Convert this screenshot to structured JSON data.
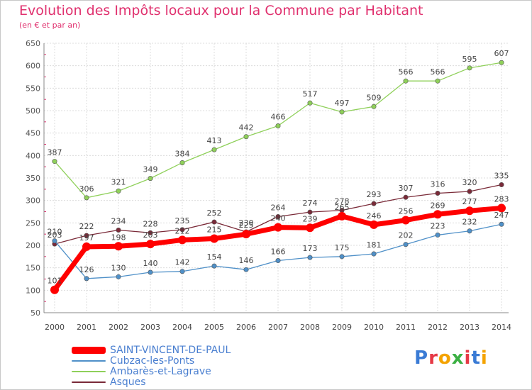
{
  "title": "Evolution des Impôts locaux pour la Commune par Habitant",
  "subtitle": "(en € et par an)",
  "brand": {
    "text": "Proxiti",
    "colors": [
      "#3a7bd5",
      "#e63946",
      "#f4a300",
      "#3cb043",
      "#e63946",
      "#3a7bd5",
      "#f4a300"
    ]
  },
  "chart_data": {
    "type": "line",
    "x": [
      "2000",
      "2001",
      "2002",
      "2003",
      "2004",
      "2005",
      "2006",
      "2007",
      "2008",
      "2009",
      "2010",
      "2011",
      "2012",
      "2013",
      "2014"
    ],
    "yticks": [
      50,
      100,
      150,
      200,
      250,
      300,
      350,
      400,
      450,
      500,
      550,
      600,
      650
    ],
    "ylim": [
      50,
      650
    ],
    "grid": true,
    "legend_position": "bottom-left",
    "series": [
      {
        "name": "SAINT-VINCENT-DE-PAUL",
        "color": "#ff0000",
        "values": [
          101,
          197,
          198,
          203,
          212,
          215,
          225,
          240,
          239,
          265,
          246,
          256,
          269,
          277,
          283
        ]
      },
      {
        "name": "Cubzac-les-Ponts",
        "color": "#4f90c8",
        "values": [
          210,
          126,
          130,
          140,
          142,
          154,
          146,
          166,
          173,
          175,
          181,
          202,
          223,
          232,
          247
        ]
      },
      {
        "name": "Ambarès-et-Lagrave",
        "color": "#8fd05a",
        "values": [
          387,
          306,
          321,
          349,
          384,
          413,
          442,
          466,
          517,
          497,
          509,
          566,
          566,
          595,
          607
        ]
      },
      {
        "name": "Asques",
        "color": "#7a2a38",
        "values": [
          203,
          222,
          234,
          228,
          235,
          252,
          230,
          264,
          274,
          278,
          293,
          307,
          316,
          320,
          335
        ]
      }
    ]
  }
}
